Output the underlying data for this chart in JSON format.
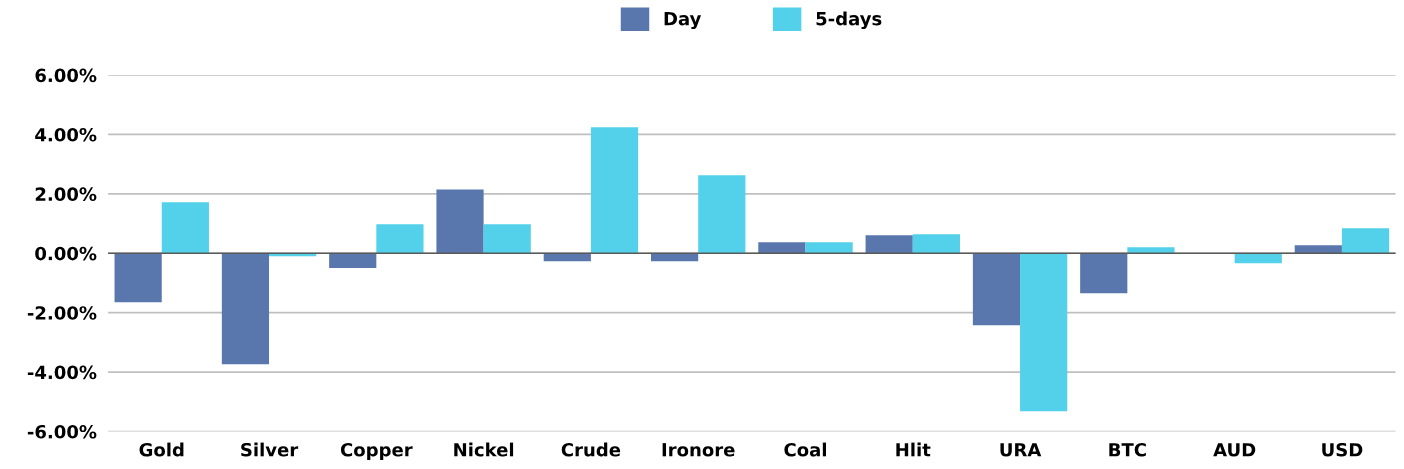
{
  "chart_data": {
    "type": "bar",
    "categories": [
      "Gold",
      "Silver",
      "Copper",
      "Nickel",
      "Crude",
      "Ironore",
      "Coal",
      "Hlit",
      "URA",
      "BTC",
      "AUD",
      "USD"
    ],
    "series": [
      {
        "name": "Day",
        "color": "#5a77ad",
        "values": [
          -1.65,
          -3.74,
          -0.5,
          2.15,
          -0.27,
          -0.27,
          0.37,
          0.61,
          -2.42,
          -1.35,
          null,
          0.27
        ]
      },
      {
        "name": "5-days",
        "color": "#53d0ea",
        "values": [
          1.72,
          -0.1,
          0.98,
          0.98,
          4.24,
          2.63,
          0.37,
          0.64,
          -5.32,
          0.2,
          -0.34,
          0.84
        ]
      }
    ],
    "ylim": [
      -6,
      6
    ],
    "yticks": [
      {
        "value": -6,
        "label": "-6.00%"
      },
      {
        "value": -4,
        "label": "-4.00%"
      },
      {
        "value": -2,
        "label": "-2.00%"
      },
      {
        "value": 0,
        "label": "0.00%"
      },
      {
        "value": 2,
        "label": "2.00%"
      },
      {
        "value": 4,
        "label": "4.00%"
      },
      {
        "value": 6,
        "label": "6.00%"
      }
    ],
    "grid": "y",
    "legend": "top",
    "ref_lines": [
      {
        "axis": "y",
        "value": 0,
        "color": "#595959"
      }
    ]
  }
}
